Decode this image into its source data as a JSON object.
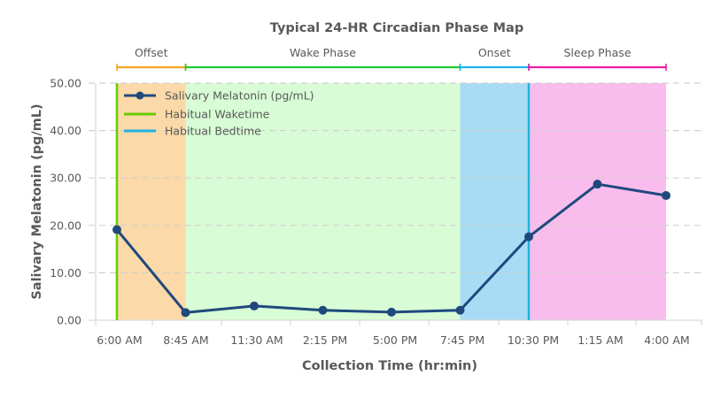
{
  "chart_data": {
    "type": "line",
    "title": "Typical 24-HR Circadian Phase Map",
    "xlabel": "Collection Time (hr:min)",
    "ylabel": "Salivary Melatonin (pg/mL)",
    "ylim": [
      0,
      50
    ],
    "yticks": [
      "0.00",
      "10.00",
      "20.00",
      "30.00",
      "40.00",
      "50.00"
    ],
    "grid": true,
    "legend_position": "upper-left-inside",
    "categories": [
      "6:00 AM",
      "8:45 AM",
      "11:30 AM",
      "2:15 PM",
      "5:00 PM",
      "7:45 PM",
      "10:30 PM",
      "1:15 AM",
      "4:00 AM"
    ],
    "series": [
      {
        "name": "Salivary Melatonin (pg/mL)",
        "values": [
          19.1,
          1.6,
          3.0,
          2.1,
          1.7,
          2.1,
          17.6,
          28.7,
          26.3
        ],
        "color": "#1f497d"
      }
    ],
    "reference_lines": [
      {
        "name": "Habitual Waketime",
        "at": "6:00 AM",
        "color": "#66cc00"
      },
      {
        "name": "Habitual Bedtime",
        "at": "10:30 PM",
        "color": "#1fb4e0"
      }
    ],
    "phases": [
      {
        "label": "Offset",
        "from": "6:00 AM",
        "to": "8:45 AM",
        "fill": "#fcd9a8",
        "bracket_color": "#f5a623"
      },
      {
        "label": "Wake Phase",
        "from": "8:45 AM",
        "to": "7:45 PM",
        "fill": "#d8fcd5",
        "bracket_color": "#22cc33"
      },
      {
        "label": "Onset",
        "from": "7:45 PM",
        "to": "10:30 PM",
        "fill": "#a8dcf5",
        "bracket_color": "#1fb4f0"
      },
      {
        "label": "Sleep Phase",
        "from": "10:30 PM",
        "to": "4:00 AM",
        "fill": "#f8bdec",
        "bracket_color": "#ee1aa8"
      }
    ]
  },
  "legend": {
    "items": [
      {
        "label": "Salivary Melatonin (pg/mL)"
      },
      {
        "label": "Habitual Waketime"
      },
      {
        "label": "Habitual Bedtime"
      }
    ]
  }
}
